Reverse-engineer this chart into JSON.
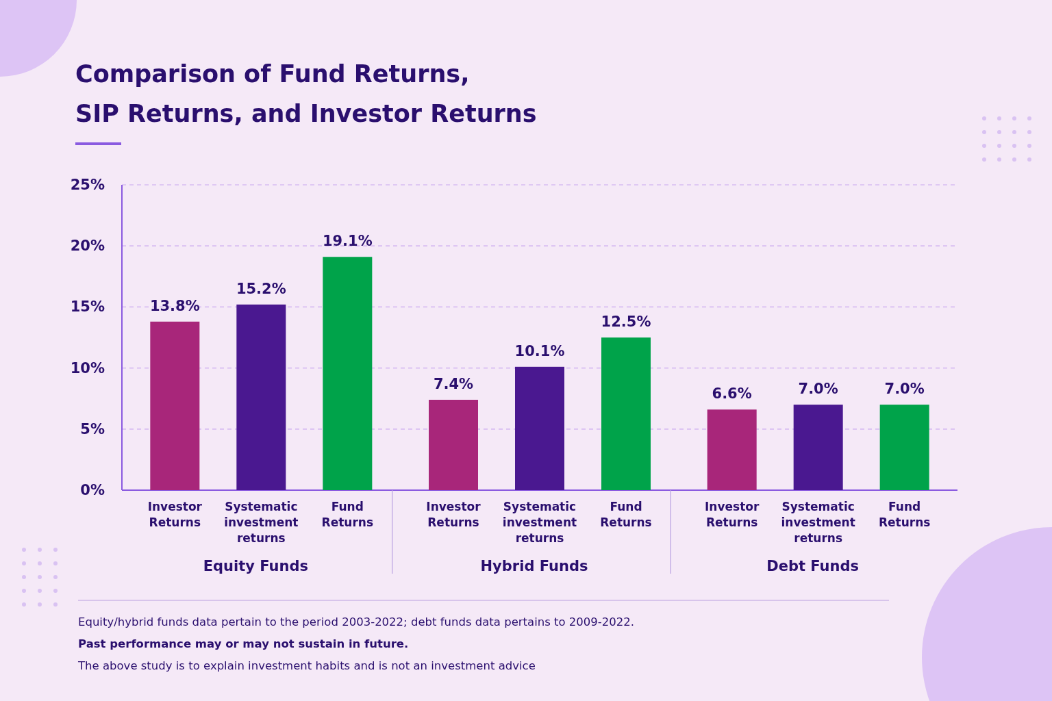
{
  "chart_data": {
    "type": "bar",
    "title": "Comparison of Fund Returns,\nSIP Returns, and Investor Returns",
    "categories": [
      "Equity Funds",
      "Hybrid Funds",
      "Debt Funds"
    ],
    "series": [
      {
        "name": "Investor Returns",
        "color": "#a8267a",
        "values": [
          13.8,
          7.4,
          6.6
        ],
        "value_labels": [
          "13.8%",
          "7.4%",
          "6.6%"
        ]
      },
      {
        "name": "Systematic investment returns",
        "color": "#4a1890",
        "values": [
          15.2,
          10.1,
          7.0
        ],
        "value_labels": [
          "15.2%",
          "10.1%",
          "7.0%"
        ]
      },
      {
        "name": "Fund Returns",
        "color": "#00a34a",
        "values": [
          19.1,
          12.5,
          7.0
        ],
        "value_labels": [
          "19.1%",
          "12.5%",
          "7.0%"
        ]
      }
    ],
    "ylim": [
      0,
      25
    ],
    "yticks": [
      {
        "value": 0,
        "label": "0%"
      },
      {
        "value": 5,
        "label": "5%"
      },
      {
        "value": 10,
        "label": "10%"
      },
      {
        "value": 15,
        "label": "15%"
      },
      {
        "value": 20,
        "label": "20%"
      },
      {
        "value": 25,
        "label": "25%"
      }
    ],
    "grid": "y",
    "annotations": [
      "Equity/hybrid funds data pertain to the period 2003-2022; debt funds data pertains to 2009-2022.",
      "Past performance may or may not sustain in future.",
      "The above study is to explain investment habits and is not an investment advice"
    ]
  }
}
